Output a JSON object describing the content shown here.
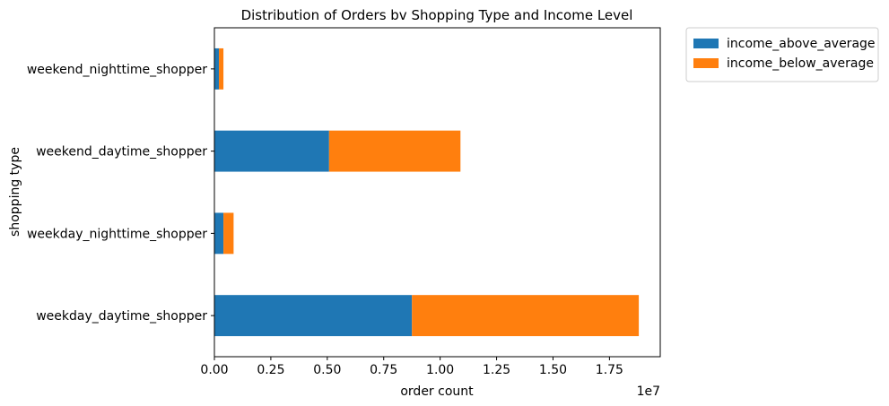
{
  "chart_data": {
    "type": "bar",
    "orientation": "horizontal",
    "stacked": true,
    "title": "Distribution of Orders bv Shopping Type and Income Level",
    "xlabel": "order count",
    "ylabel": "shopping type",
    "x_scale_label": "1e7",
    "categories": [
      "weekday_daytime_shopper",
      "weekday_nighttime_shopper",
      "weekend_daytime_shopper",
      "weekend_nighttime_shopper"
    ],
    "series": [
      {
        "name": "income_above_average",
        "color": "#1f77b4",
        "values": [
          8750000,
          400000,
          5080000,
          200000
        ]
      },
      {
        "name": "income_below_average",
        "color": "#ff7f0e",
        "values": [
          10050000,
          450000,
          5820000,
          200000
        ]
      }
    ],
    "xlim": [
      0,
      19750000
    ],
    "xticks": [
      0,
      2500000,
      5000000,
      7500000,
      10000000,
      12500000,
      15000000,
      17500000
    ],
    "xtick_labels": [
      "0.00",
      "0.25",
      "0.50",
      "0.75",
      "1.00",
      "1.25",
      "1.50",
      "1.75"
    ],
    "grid": false,
    "legend_position": "outside upper right"
  }
}
